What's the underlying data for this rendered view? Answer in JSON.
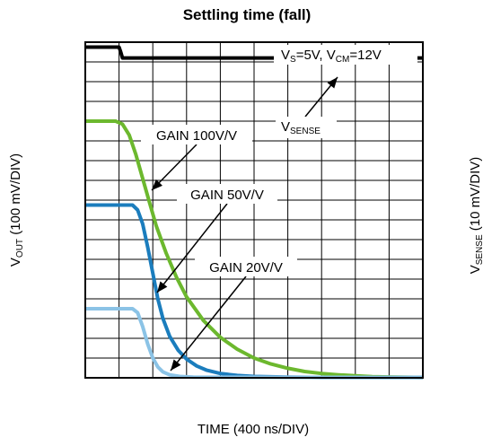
{
  "chart_data": {
    "type": "line",
    "title": "Settling time (fall)",
    "xlabel": "TIME (400 ns/DIV)",
    "ylabel_left": {
      "main": "V",
      "sub": "OUT",
      "rest": " (100 mV/DIV)"
    },
    "ylabel_right": {
      "main": "V",
      "sub": "SENSE",
      "rest": " (10 mV/DIV)"
    },
    "conditions": {
      "vs": {
        "main": "V",
        "sub": "S",
        "rest": "=5V, "
      },
      "vcm": {
        "main": "V",
        "sub": "CM",
        "rest": "=12V"
      }
    },
    "grid": true,
    "x_divisions": 10,
    "y_divisions": 17,
    "xlim": [
      0,
      10
    ],
    "ylim": [
      0,
      17
    ],
    "series": [
      {
        "name": "VSENSE",
        "color": "#000000",
        "points": [
          [
            0,
            16.75
          ],
          [
            1.0,
            16.75
          ],
          [
            1.05,
            16.5
          ],
          [
            1.1,
            16.2
          ],
          [
            10,
            16.2
          ]
        ]
      },
      {
        "name": "GAIN 100V/V",
        "color": "#6cb82e",
        "points": [
          [
            0,
            13.0
          ],
          [
            0.9,
            13.0
          ],
          [
            1.1,
            12.85
          ],
          [
            1.3,
            12.3
          ],
          [
            1.5,
            11.3
          ],
          [
            1.7,
            10.1
          ],
          [
            1.9,
            8.9
          ],
          [
            2.1,
            7.7
          ],
          [
            2.4,
            6.3
          ],
          [
            2.7,
            5.1
          ],
          [
            3.0,
            4.1
          ],
          [
            3.5,
            2.9
          ],
          [
            4.0,
            2.05
          ],
          [
            4.5,
            1.45
          ],
          [
            5.0,
            1.0
          ],
          [
            5.5,
            0.7
          ],
          [
            6.0,
            0.48
          ],
          [
            6.5,
            0.32
          ],
          [
            7.0,
            0.22
          ],
          [
            7.5,
            0.15
          ],
          [
            8.0,
            0.1
          ],
          [
            8.5,
            0.06
          ],
          [
            9.0,
            0.04
          ],
          [
            10.0,
            0.02
          ]
        ]
      },
      {
        "name": "GAIN 50V/V",
        "color": "#1b7dbd",
        "points": [
          [
            0,
            8.75
          ],
          [
            1.4,
            8.75
          ],
          [
            1.55,
            8.5
          ],
          [
            1.7,
            7.8
          ],
          [
            1.85,
            6.6
          ],
          [
            2.0,
            5.3
          ],
          [
            2.15,
            4.0
          ],
          [
            2.3,
            3.0
          ],
          [
            2.5,
            2.1
          ],
          [
            2.75,
            1.4
          ],
          [
            3.0,
            0.95
          ],
          [
            3.3,
            0.6
          ],
          [
            3.6,
            0.38
          ],
          [
            4.0,
            0.22
          ],
          [
            4.5,
            0.12
          ],
          [
            5.0,
            0.07
          ],
          [
            6.0,
            0.03
          ],
          [
            7.0,
            0.02
          ],
          [
            10.0,
            0.02
          ]
        ]
      },
      {
        "name": "GAIN 20V/V",
        "color": "#8bc3e6",
        "points": [
          [
            0,
            3.5
          ],
          [
            1.4,
            3.5
          ],
          [
            1.55,
            3.3
          ],
          [
            1.7,
            2.6
          ],
          [
            1.85,
            1.7
          ],
          [
            2.0,
            1.0
          ],
          [
            2.15,
            0.55
          ],
          [
            2.3,
            0.3
          ],
          [
            2.5,
            0.15
          ],
          [
            2.8,
            0.07
          ],
          [
            3.2,
            0.03
          ],
          [
            10.0,
            0.02
          ]
        ]
      }
    ],
    "annotations": [
      {
        "text": "GAIN 100V/V",
        "color": "#000000"
      },
      {
        "text": "GAIN 50V/V",
        "color": "#000000"
      },
      {
        "text": "GAIN 20V/V",
        "color": "#000000"
      },
      {
        "text": {
          "main": "V",
          "sub": "SENSE"
        },
        "color": "#000000"
      }
    ]
  }
}
